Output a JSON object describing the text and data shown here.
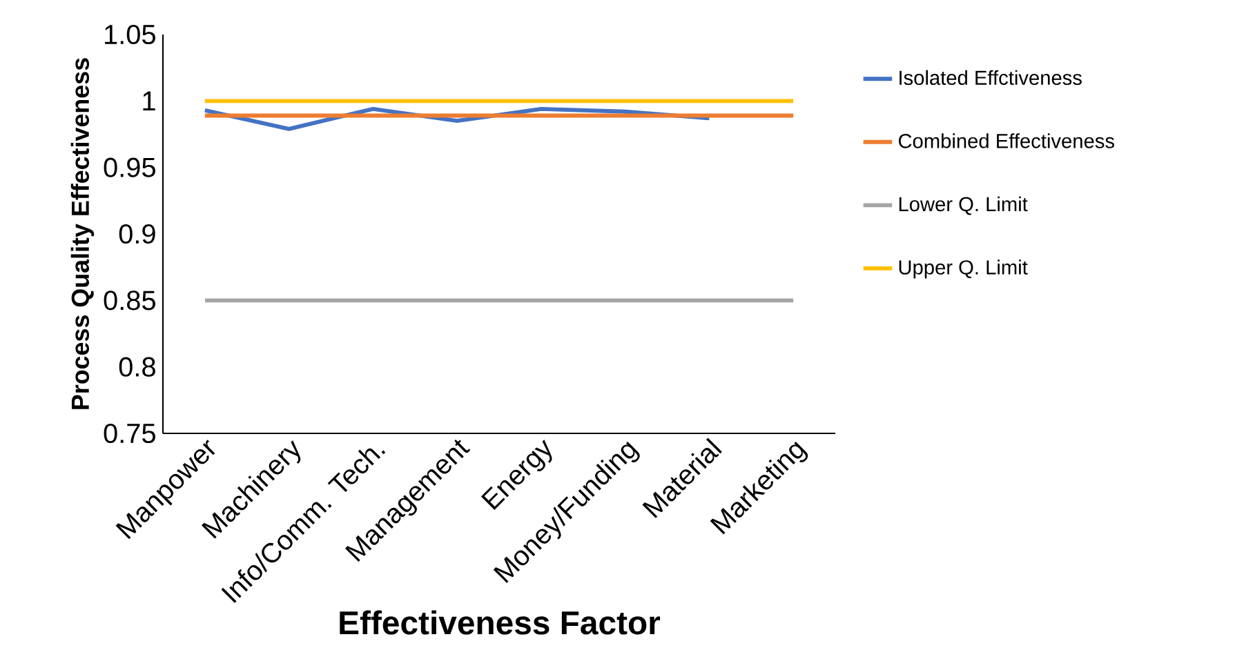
{
  "chart_data": {
    "type": "line",
    "xlabel": "Effectiveness Factor",
    "ylabel": "Process Quality Effectiveness",
    "categories": [
      "Manpower",
      "Machinery",
      "Info/Comm. Tech.",
      "Management",
      "Energy",
      "Money/Funding",
      "Material",
      "Marketing"
    ],
    "series": [
      {
        "name": "Isolated Effctiveness",
        "color": "#4472c4",
        "values": [
          0.993,
          0.979,
          0.994,
          0.985,
          0.994,
          0.992,
          0.987,
          null
        ]
      },
      {
        "name": "Combined Effectiveness",
        "color": "#ed7d31",
        "values": [
          0.989,
          0.989,
          0.989,
          0.989,
          0.989,
          0.989,
          0.989,
          0.989
        ]
      },
      {
        "name": "Lower Q. Limit",
        "color": "#a5a5a5",
        "values": [
          0.85,
          0.85,
          0.85,
          0.85,
          0.85,
          0.85,
          0.85,
          0.85
        ]
      },
      {
        "name": "Upper Q. Limit",
        "color": "#ffc000",
        "values": [
          1,
          1,
          1,
          1,
          1,
          1,
          1,
          1
        ]
      }
    ],
    "ylim": [
      0.75,
      1.05
    ],
    "yticks": [
      0.75,
      0.8,
      0.85,
      0.9,
      0.95,
      1,
      1.05
    ],
    "grid": false,
    "legend": "right",
    "marker": "none",
    "line_style": "solid"
  }
}
